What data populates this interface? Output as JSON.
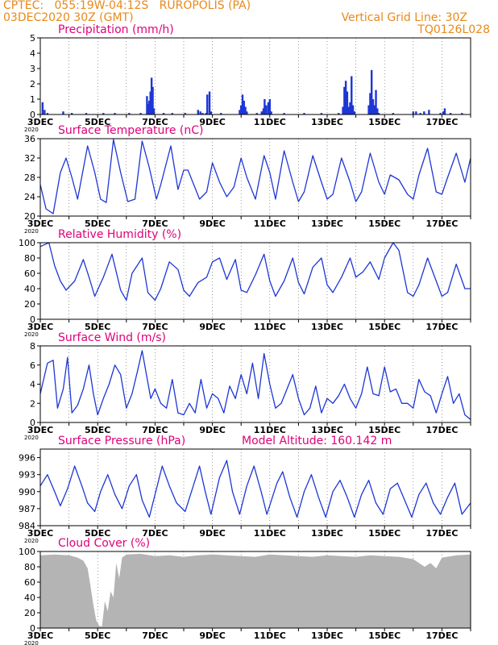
{
  "header": {
    "line1_left": "CPTEC:   055:19W-04:12S   RUROPOLIS (PA)",
    "line2_left": "03DEC2020 30Z (GMT)",
    "line1_right": "Vertical Grid Line: 30Z",
    "line2_right": "TQ0126L028"
  },
  "colors": {
    "header": "#e8891a",
    "panel_title": "#e0007a",
    "series": "#1d36d6",
    "cloud_fill": "#b4b4b4",
    "axis": "#000000",
    "grid": "#555555"
  },
  "x_axis": {
    "start_day": 3,
    "end_day": 18,
    "tick_labels": [
      "3DEC",
      "5DEC",
      "7DEC",
      "9DEC",
      "11DEC",
      "13DEC",
      "15DEC",
      "17DEC"
    ],
    "tick_days": [
      3,
      5,
      7,
      9,
      11,
      13,
      15,
      17
    ],
    "year_label": "2020"
  },
  "chart_data": [
    {
      "id": "precipitation",
      "type": "bar",
      "title": "Precipitation (mm/h)",
      "ylim": [
        0,
        5
      ],
      "yticks": [
        0,
        1,
        2,
        3,
        4,
        5
      ],
      "bars": [
        [
          3.08,
          0.8
        ],
        [
          3.15,
          0.3
        ],
        [
          3.25,
          0.1
        ],
        [
          3.8,
          0.2
        ],
        [
          4.1,
          0.1
        ],
        [
          4.6,
          0.1
        ],
        [
          5.2,
          0.1
        ],
        [
          5.6,
          0.1
        ],
        [
          6.1,
          0.1
        ],
        [
          6.5,
          0.1
        ],
        [
          6.72,
          1.2
        ],
        [
          6.76,
          0.7
        ],
        [
          6.8,
          0.9
        ],
        [
          6.84,
          1.5
        ],
        [
          6.88,
          2.4
        ],
        [
          6.92,
          1.8
        ],
        [
          6.96,
          0.4
        ],
        [
          7.3,
          0.1
        ],
        [
          7.6,
          0.1
        ],
        [
          8.05,
          0.1
        ],
        [
          8.5,
          0.3
        ],
        [
          8.58,
          0.2
        ],
        [
          8.66,
          0.1
        ],
        [
          8.78,
          0.1
        ],
        [
          8.82,
          1.3
        ],
        [
          8.9,
          1.5
        ],
        [
          8.95,
          0.2
        ],
        [
          9.3,
          0.1
        ],
        [
          9.95,
          0.3
        ],
        [
          10.0,
          0.6
        ],
        [
          10.05,
          1.3
        ],
        [
          10.1,
          0.9
        ],
        [
          10.15,
          0.5
        ],
        [
          10.2,
          0.2
        ],
        [
          10.55,
          0.1
        ],
        [
          10.72,
          0.2
        ],
        [
          10.78,
          0.4
        ],
        [
          10.82,
          1.0
        ],
        [
          10.88,
          0.6
        ],
        [
          10.95,
          0.8
        ],
        [
          11.0,
          1.0
        ],
        [
          11.05,
          0.2
        ],
        [
          11.5,
          0.1
        ],
        [
          12.2,
          0.1
        ],
        [
          12.8,
          0.1
        ],
        [
          13.4,
          0.1
        ],
        [
          13.55,
          0.5
        ],
        [
          13.6,
          1.8
        ],
        [
          13.65,
          2.2
        ],
        [
          13.7,
          1.5
        ],
        [
          13.75,
          0.5
        ],
        [
          13.8,
          0.8
        ],
        [
          13.85,
          2.5
        ],
        [
          13.9,
          0.6
        ],
        [
          13.95,
          0.2
        ],
        [
          14.45,
          0.6
        ],
        [
          14.5,
          1.4
        ],
        [
          14.55,
          2.9
        ],
        [
          14.6,
          1.0
        ],
        [
          14.65,
          0.6
        ],
        [
          14.7,
          1.6
        ],
        [
          14.75,
          0.4
        ],
        [
          14.8,
          0.1
        ],
        [
          15.3,
          0.1
        ],
        [
          16.0,
          0.2
        ],
        [
          16.1,
          0.2
        ],
        [
          16.25,
          0.1
        ],
        [
          16.38,
          0.2
        ],
        [
          16.55,
          0.3
        ],
        [
          16.95,
          0.1
        ],
        [
          17.05,
          0.2
        ],
        [
          17.1,
          0.4
        ],
        [
          17.3,
          0.1
        ],
        [
          17.7,
          0.1
        ]
      ]
    },
    {
      "id": "temperature",
      "type": "line",
      "title": "Surface Temperature (nC)",
      "ylim": [
        20,
        36
      ],
      "yticks": [
        20,
        24,
        28,
        32,
        36
      ],
      "x": [
        3.0,
        3.2,
        3.45,
        3.7,
        3.9,
        4.1,
        4.3,
        4.65,
        4.9,
        5.1,
        5.3,
        5.55,
        5.8,
        6.05,
        6.3,
        6.55,
        6.8,
        7.05,
        7.2,
        7.55,
        7.8,
        8.0,
        8.15,
        8.55,
        8.8,
        9.0,
        9.25,
        9.5,
        9.75,
        10.0,
        10.2,
        10.5,
        10.8,
        11.0,
        11.2,
        11.5,
        11.8,
        12.0,
        12.2,
        12.5,
        12.8,
        13.0,
        13.2,
        13.5,
        13.8,
        14.0,
        14.2,
        14.5,
        14.8,
        15.0,
        15.2,
        15.5,
        15.8,
        16.0,
        16.2,
        16.5,
        16.8,
        17.0,
        17.2,
        17.5,
        17.8,
        18.0
      ],
      "y": [
        26.5,
        21.5,
        20.5,
        29.0,
        32.0,
        28.0,
        23.5,
        34.5,
        29.0,
        23.5,
        22.8,
        35.8,
        29.0,
        23.0,
        23.5,
        35.5,
        30.0,
        23.5,
        26.5,
        34.5,
        25.5,
        29.5,
        29.5,
        23.5,
        25.0,
        31.0,
        27.0,
        24.0,
        26.0,
        32.0,
        28.0,
        23.5,
        32.5,
        29.0,
        23.5,
        33.5,
        27.0,
        23.0,
        25.0,
        32.5,
        27.0,
        23.5,
        24.5,
        32.0,
        27.0,
        23.0,
        25.0,
        33.0,
        27.0,
        24.5,
        28.5,
        27.5,
        24.5,
        23.5,
        28.5,
        34.0,
        25.0,
        24.5,
        28.0,
        33.0,
        27.0,
        32.0
      ]
    },
    {
      "id": "humidity",
      "type": "line",
      "title": "Relative Humidity (%)",
      "ylim": [
        0,
        100
      ],
      "yticks": [
        0,
        20,
        40,
        60,
        80,
        100
      ],
      "x": [
        3.0,
        3.3,
        3.5,
        3.7,
        3.9,
        4.2,
        4.5,
        4.7,
        4.9,
        5.2,
        5.5,
        5.8,
        6.0,
        6.2,
        6.55,
        6.75,
        7.0,
        7.2,
        7.5,
        7.8,
        8.0,
        8.2,
        8.5,
        8.8,
        9.0,
        9.25,
        9.5,
        9.8,
        10.0,
        10.2,
        10.5,
        10.8,
        11.0,
        11.2,
        11.5,
        11.8,
        12.0,
        12.2,
        12.5,
        12.8,
        13.0,
        13.2,
        13.5,
        13.8,
        14.0,
        14.25,
        14.5,
        14.8,
        15.0,
        15.3,
        15.5,
        15.8,
        16.0,
        16.2,
        16.5,
        16.8,
        17.0,
        17.2,
        17.5,
        17.8,
        18.0
      ],
      "y": [
        95,
        100,
        70,
        50,
        38,
        50,
        78,
        55,
        30,
        55,
        85,
        38,
        25,
        60,
        80,
        35,
        25,
        40,
        75,
        65,
        38,
        30,
        48,
        55,
        75,
        80,
        52,
        78,
        38,
        35,
        58,
        85,
        50,
        30,
        50,
        80,
        48,
        33,
        68,
        80,
        45,
        35,
        55,
        80,
        55,
        62,
        75,
        52,
        80,
        100,
        90,
        35,
        30,
        45,
        80,
        50,
        30,
        35,
        72,
        40,
        40
      ]
    },
    {
      "id": "wind",
      "type": "line",
      "title": "Surface Wind (m/s)",
      "ylim": [
        0,
        8
      ],
      "yticks": [
        0,
        2,
        4,
        6,
        8
      ],
      "x": [
        3.0,
        3.25,
        3.45,
        3.6,
        3.8,
        3.95,
        4.1,
        4.3,
        4.5,
        4.7,
        4.85,
        5.0,
        5.2,
        5.4,
        5.6,
        5.8,
        6.0,
        6.2,
        6.4,
        6.55,
        6.7,
        6.85,
        7.0,
        7.2,
        7.4,
        7.6,
        7.8,
        8.0,
        8.2,
        8.4,
        8.6,
        8.8,
        9.0,
        9.2,
        9.4,
        9.6,
        9.8,
        10.0,
        10.2,
        10.4,
        10.6,
        10.8,
        11.0,
        11.2,
        11.4,
        11.6,
        11.8,
        12.0,
        12.2,
        12.4,
        12.6,
        12.8,
        13.0,
        13.2,
        13.4,
        13.6,
        13.8,
        14.0,
        14.2,
        14.4,
        14.6,
        14.8,
        15.0,
        15.2,
        15.4,
        15.6,
        15.8,
        16.0,
        16.2,
        16.4,
        16.6,
        16.8,
        17.0,
        17.2,
        17.4,
        17.6,
        17.8,
        18.0
      ],
      "y": [
        3.0,
        6.2,
        6.5,
        1.5,
        3.5,
        6.8,
        1.0,
        1.8,
        3.5,
        6.0,
        3.0,
        0.8,
        2.5,
        4.0,
        6.0,
        5.0,
        1.5,
        3.0,
        5.5,
        7.5,
        5.0,
        2.5,
        3.5,
        2.0,
        1.5,
        4.5,
        1.0,
        0.8,
        2.0,
        1.0,
        4.5,
        1.5,
        3.0,
        2.5,
        1.0,
        3.8,
        2.5,
        5.0,
        3.0,
        6.2,
        2.5,
        7.2,
        4.0,
        1.5,
        2.0,
        3.5,
        5.0,
        2.5,
        0.8,
        1.5,
        3.8,
        1.0,
        2.5,
        2.0,
        2.8,
        4.0,
        2.5,
        1.5,
        3.0,
        5.8,
        3.0,
        2.8,
        5.8,
        3.2,
        3.5,
        2.0,
        2.0,
        1.5,
        4.5,
        3.2,
        2.8,
        1.0,
        3.0,
        4.8,
        2.0,
        3.0,
        0.8,
        0.3
      ]
    },
    {
      "id": "pressure",
      "type": "line",
      "title": "Surface Pressure (hPa)",
      "subtitle": "Model Altitude: 160.142 m",
      "ylim": [
        984,
        997.5
      ],
      "yticks": [
        984,
        987,
        990,
        993,
        996
      ],
      "x": [
        3.0,
        3.25,
        3.5,
        3.7,
        3.95,
        4.2,
        4.45,
        4.65,
        4.9,
        5.1,
        5.35,
        5.6,
        5.85,
        6.1,
        6.35,
        6.55,
        6.8,
        7.0,
        7.25,
        7.5,
        7.75,
        8.05,
        8.3,
        8.55,
        8.75,
        8.95,
        9.25,
        9.5,
        9.7,
        9.95,
        10.2,
        10.45,
        10.7,
        10.9,
        11.25,
        11.45,
        11.7,
        11.95,
        12.2,
        12.45,
        12.7,
        12.95,
        13.2,
        13.45,
        13.7,
        13.95,
        14.2,
        14.45,
        14.7,
        14.95,
        15.2,
        15.45,
        15.7,
        15.95,
        16.2,
        16.45,
        16.7,
        16.95,
        17.2,
        17.45,
        17.7,
        18.0
      ],
      "y": [
        991.0,
        993.0,
        990.0,
        987.5,
        990.5,
        994.5,
        991.0,
        988.0,
        986.5,
        990.0,
        993.0,
        989.5,
        987.0,
        991.0,
        993.0,
        988.5,
        985.5,
        989.5,
        994.5,
        991.0,
        988.0,
        986.5,
        990.5,
        994.5,
        990.0,
        986.0,
        992.5,
        995.5,
        990.0,
        986.0,
        991.0,
        994.5,
        990.0,
        986.0,
        991.5,
        993.5,
        989.0,
        985.5,
        990.0,
        993.0,
        989.0,
        985.5,
        990.0,
        992.0,
        989.0,
        985.5,
        989.5,
        992.0,
        988.0,
        986.0,
        990.5,
        991.5,
        988.5,
        985.5,
        989.5,
        991.5,
        988.0,
        986.0,
        989.0,
        991.5,
        986.0,
        988.0
      ]
    },
    {
      "id": "cloud",
      "type": "area",
      "title": "Cloud Cover (%)",
      "ylim": [
        0,
        100
      ],
      "yticks": [
        0,
        20,
        40,
        60,
        80,
        100
      ],
      "x": [
        3.0,
        3.5,
        4.0,
        4.3,
        4.5,
        4.65,
        4.75,
        4.85,
        4.95,
        5.05,
        5.15,
        5.25,
        5.35,
        5.45,
        5.55,
        5.65,
        5.75,
        5.85,
        6.0,
        6.5,
        7.0,
        7.5,
        8.0,
        8.5,
        9.0,
        9.5,
        10.0,
        10.5,
        11.0,
        11.5,
        12.0,
        12.5,
        13.0,
        13.5,
        14.0,
        14.5,
        15.0,
        15.5,
        16.0,
        16.4,
        16.6,
        16.8,
        17.0,
        17.5,
        18.0
      ],
      "y": [
        95,
        96,
        95,
        92,
        88,
        78,
        55,
        30,
        10,
        3,
        2,
        35,
        22,
        48,
        40,
        85,
        65,
        92,
        96,
        97,
        94,
        95,
        93,
        95,
        96,
        95,
        94,
        93,
        96,
        95,
        94,
        93,
        95,
        94,
        93,
        95,
        94,
        93,
        90,
        80,
        85,
        78,
        92,
        95,
        96
      ]
    }
  ]
}
